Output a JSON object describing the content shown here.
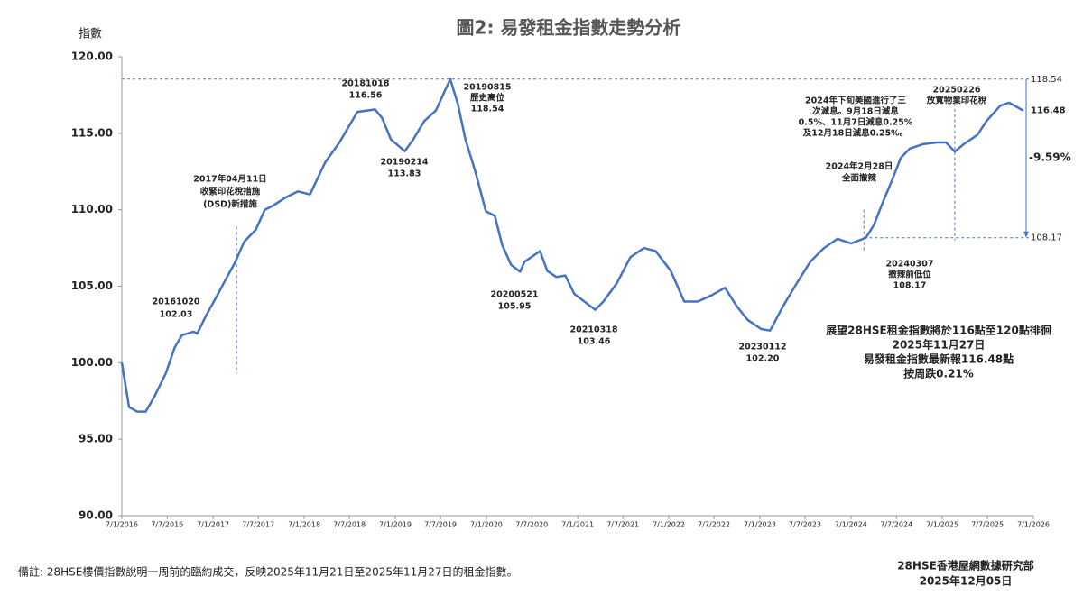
{
  "chart_data": {
    "type": "line",
    "title": "圖2: 易發租金指數走勢分析",
    "y_label": "指數",
    "color": "#4472c4",
    "x": [
      "2016-01-07",
      "2016-02-05",
      "2016-03-08",
      "2016-04-12",
      "2016-05-17",
      "2016-07-01",
      "2016-08-06",
      "2016-09-04",
      "2016-10-20",
      "2016-11-04",
      "2016-12-10",
      "2017-01-20",
      "2017-02-25",
      "2017-04-06",
      "2017-05-11",
      "2017-06-27",
      "2017-08-02",
      "2017-09-07",
      "2017-10-24",
      "2017-12-13",
      "2018-01-30",
      "2018-04-01",
      "2018-05-28",
      "2018-08-08",
      "2018-10-18",
      "2018-11-15",
      "2018-12-20",
      "2019-02-14",
      "2019-03-20",
      "2019-05-03",
      "2019-06-19",
      "2019-08-15",
      "2019-09-15",
      "2019-10-15",
      "2019-11-22",
      "2020-01-05",
      "2020-02-10",
      "2020-03-10",
      "2020-04-15",
      "2020-05-21",
      "2020-06-08",
      "2020-08-09",
      "2020-09-07",
      "2020-10-13",
      "2020-11-18",
      "2020-12-24",
      "2021-03-18",
      "2021-04-20",
      "2021-06-13",
      "2021-08-06",
      "2021-09-29",
      "2021-11-15",
      "2022-01-15",
      "2022-03-10",
      "2022-05-03",
      "2022-06-27",
      "2022-08-20",
      "2022-10-06",
      "2022-11-19",
      "2023-01-12",
      "2023-02-17",
      "2023-04-10",
      "2023-06-04",
      "2023-07-28",
      "2023-09-21",
      "2023-11-14",
      "2024-01-08",
      "2024-03-07",
      "2024-04-08",
      "2024-05-14",
      "2024-06-19",
      "2024-07-25",
      "2024-08-30",
      "2024-10-24",
      "2024-12-17",
      "2025-01-22",
      "2025-02-26",
      "2025-04-04",
      "2025-05-28",
      "2025-07-03",
      "2025-08-27",
      "2025-10-02",
      "2025-11-27"
    ],
    "values": [
      100.0,
      97.1,
      96.8,
      96.8,
      97.8,
      99.3,
      101.0,
      101.8,
      102.03,
      101.9,
      103.1,
      104.3,
      105.4,
      106.6,
      107.9,
      108.7,
      110.0,
      110.3,
      110.8,
      111.2,
      111.0,
      113.1,
      114.4,
      116.4,
      116.56,
      116.0,
      114.6,
      113.83,
      114.6,
      115.8,
      116.5,
      118.54,
      116.9,
      114.6,
      112.6,
      109.9,
      109.6,
      107.7,
      106.4,
      105.95,
      106.6,
      107.3,
      106.0,
      105.6,
      105.7,
      104.5,
      103.46,
      104.0,
      105.2,
      106.9,
      107.5,
      107.3,
      106.0,
      104.0,
      104.0,
      104.4,
      104.9,
      103.7,
      102.8,
      102.2,
      102.1,
      103.7,
      105.2,
      106.6,
      107.5,
      108.1,
      107.8,
      108.17,
      109.0,
      110.5,
      111.9,
      113.4,
      114.0,
      114.3,
      114.4,
      114.4,
      113.8,
      114.3,
      114.9,
      115.8,
      116.8,
      117.0,
      116.48
    ],
    "xlim": [
      "2016-01-07",
      "2026-01-07"
    ],
    "xticks": [
      {
        "value": "2016-01-07",
        "label": "7/1/2016"
      },
      {
        "value": "2016-07-07",
        "label": "7/7/2016"
      },
      {
        "value": "2017-01-07",
        "label": "7/1/2017"
      },
      {
        "value": "2017-07-07",
        "label": "7/7/2017"
      },
      {
        "value": "2018-01-07",
        "label": "7/1/2018"
      },
      {
        "value": "2018-07-07",
        "label": "7/7/2018"
      },
      {
        "value": "2019-01-07",
        "label": "7/1/2019"
      },
      {
        "value": "2019-07-07",
        "label": "7/7/2019"
      },
      {
        "value": "2020-01-07",
        "label": "7/1/2020"
      },
      {
        "value": "2020-07-07",
        "label": "7/7/2020"
      },
      {
        "value": "2021-01-07",
        "label": "7/1/2021"
      },
      {
        "value": "2021-07-07",
        "label": "7/7/2021"
      },
      {
        "value": "2022-01-07",
        "label": "7/1/2022"
      },
      {
        "value": "2022-07-07",
        "label": "7/7/2022"
      },
      {
        "value": "2023-01-07",
        "label": "7/1/2023"
      },
      {
        "value": "2023-07-07",
        "label": "7/7/2023"
      },
      {
        "value": "2024-01-07",
        "label": "7/1/2024"
      },
      {
        "value": "2024-07-07",
        "label": "7/7/2024"
      },
      {
        "value": "2025-01-07",
        "label": "7/1/2025"
      },
      {
        "value": "2025-07-07",
        "label": "7/7/2025"
      },
      {
        "value": "2026-01-07",
        "label": "7/1/2026"
      }
    ],
    "ylim": [
      90,
      120
    ],
    "yticks": [
      {
        "value": 90,
        "label": "90.00"
      },
      {
        "value": 95,
        "label": "95.00"
      },
      {
        "value": 100,
        "label": "100.00"
      },
      {
        "value": 105,
        "label": "105.00"
      },
      {
        "value": 110,
        "label": "110.00"
      },
      {
        "value": 115,
        "label": "115.00"
      },
      {
        "value": 120,
        "label": "120.00"
      }
    ],
    "grid": false,
    "hlines": [
      {
        "value": 118.54,
        "label": "118.54"
      },
      {
        "value": 108.17,
        "label": "108.17"
      }
    ],
    "vlines": [
      "2017-04-11",
      "2024-02-28",
      "2025-02-26"
    ],
    "right_labels": [
      "116.48",
      "-9.59%"
    ],
    "annotations": [
      [
        "20161020",
        "102.03"
      ],
      [
        "2017年04月11日",
        "收緊印花稅措施",
        "(DSD)新措施"
      ],
      [
        "20181018",
        "116.56"
      ],
      [
        "20190815",
        "歷史高位",
        "118.54"
      ],
      [
        "20190214",
        "113.83"
      ],
      [
        "20200521",
        "105.95"
      ],
      [
        "20210318",
        "103.46"
      ],
      [
        "20230112",
        "102.20"
      ],
      [
        "2024年下旬美國進行了三",
        "次減息。9月18日減息",
        "0.5%、11月7日減息0.25%",
        "及12月18日減息0.25%。"
      ],
      [
        "2024年2月28日",
        "全面撤辣"
      ],
      [
        "20240307",
        "撤辣前低位",
        "108.17"
      ],
      [
        "20250226",
        "放寬物業印花稅"
      ],
      [
        "展望28HSE租金指數將於116點至120點徘徊",
        "2025年11月27日",
        "易發租金指數最新報116.48點",
        "按周跌0.21%"
      ]
    ],
    "footnote": "備註: 28HSE樓價指數說明一周前的臨約成交，反映2025年11月21日至2025年11月27日的租金指數。",
    "source": [
      "28HSE香港屋網數據研究部",
      "2025年12月05日"
    ]
  }
}
